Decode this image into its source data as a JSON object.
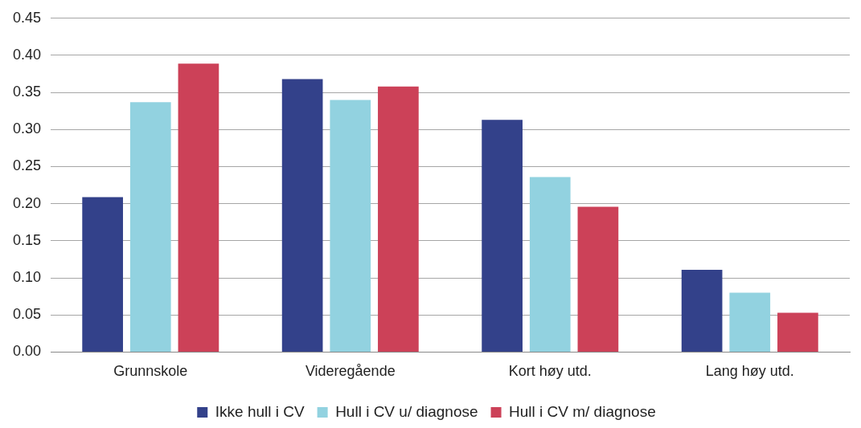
{
  "chart_data": {
    "type": "bar",
    "categories": [
      "Grunnskole",
      "Videregående",
      "Kort høy utd.",
      "Lang høy utd."
    ],
    "series": [
      {
        "name": "Ikke hull i CV",
        "color": "#33418a",
        "values": [
          0.209,
          0.368,
          0.313,
          0.111
        ]
      },
      {
        "name": "Hull i CV u/ diagnose",
        "color": "#92d2e0",
        "values": [
          0.337,
          0.34,
          0.236,
          0.08
        ]
      },
      {
        "name": "Hull i CV m/ diagnose",
        "color": "#cc4158",
        "values": [
          0.389,
          0.358,
          0.196,
          0.053
        ]
      }
    ],
    "ylim": [
      0,
      0.45
    ],
    "yticks": [
      {
        "value": 0,
        "label": "0.00"
      },
      {
        "value": 0.05,
        "label": "0.05"
      },
      {
        "value": 0.1,
        "label": "0.10"
      },
      {
        "value": 0.15,
        "label": "0.15"
      },
      {
        "value": 0.2,
        "label": "0.20"
      },
      {
        "value": 0.25,
        "label": "0.25"
      },
      {
        "value": 0.3,
        "label": "0.30"
      },
      {
        "value": 0.35,
        "label": "0.35"
      },
      {
        "value": 0.4,
        "label": "0.40"
      },
      {
        "value": 0.45,
        "label": "0.45"
      }
    ],
    "grid": "y",
    "legend": "bottom"
  }
}
